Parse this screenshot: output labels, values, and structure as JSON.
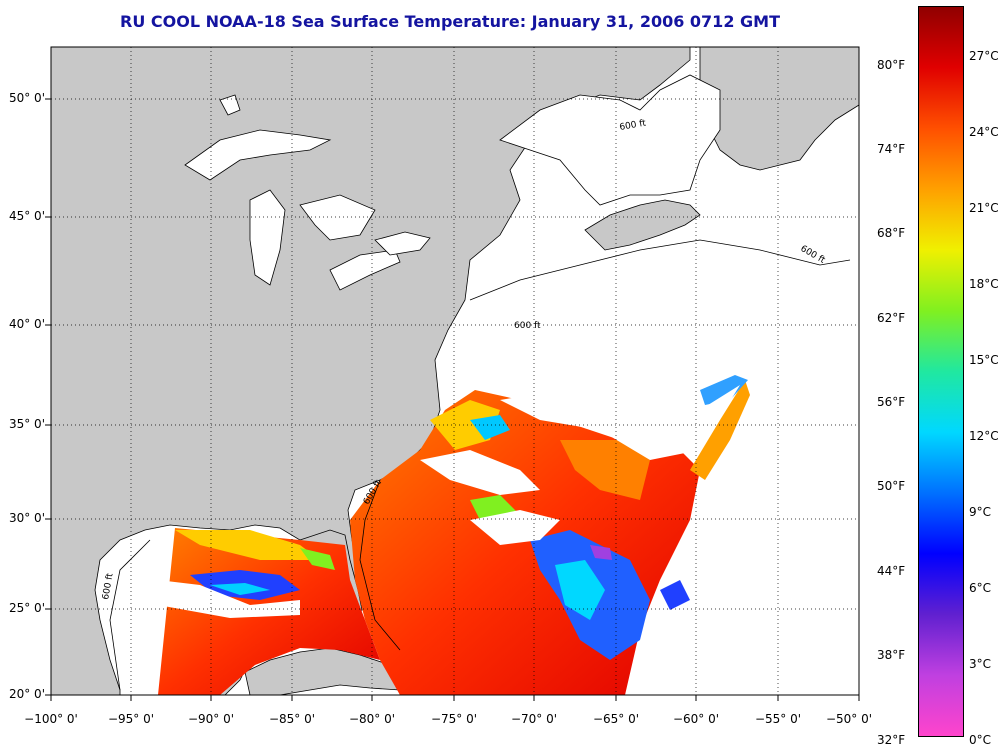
{
  "title": "RU COOL  NOAA-18  Sea Surface Temperature:  January 31, 2006 0712 GMT",
  "map": {
    "lat_labels": [
      "50° 0'",
      "45° 0'",
      "40° 0'",
      "35° 0'",
      "30° 0'",
      "25° 0'",
      "20° 0'"
    ],
    "lon_labels": [
      "−100° 0'",
      "−95° 0'",
      "−90° 0'",
      "−85° 0'",
      "−80° 0'",
      "−75° 0'",
      "−70° 0'",
      "−65° 0'",
      "−60° 0'",
      "−55° 0'",
      "−50° 0'"
    ],
    "isobath_label": "600 ft",
    "colors": {
      "land": "#c8c8c8",
      "no_data": "#ffffff",
      "coastline": "#000000",
      "grid": "#000000"
    }
  },
  "colorbar": {
    "fahrenheit_labels": [
      "80°F",
      "74°F",
      "68°F",
      "62°F",
      "56°F",
      "50°F",
      "44°F",
      "38°F",
      "32°F"
    ],
    "celsius_labels": [
      "27°C",
      "24°C",
      "21°C",
      "18°C",
      "15°C",
      "12°C",
      "9°C",
      "6°C",
      "3°C",
      "0°C"
    ],
    "range_celsius": [
      0,
      28.5
    ],
    "stops": [
      "#ff44cc",
      "#c040e0",
      "#6020d0",
      "#0000ff",
      "#0070ff",
      "#00d8ff",
      "#20e8a0",
      "#80f020",
      "#f0f000",
      "#ffa000",
      "#ff5000",
      "#e00000",
      "#900000"
    ]
  }
}
